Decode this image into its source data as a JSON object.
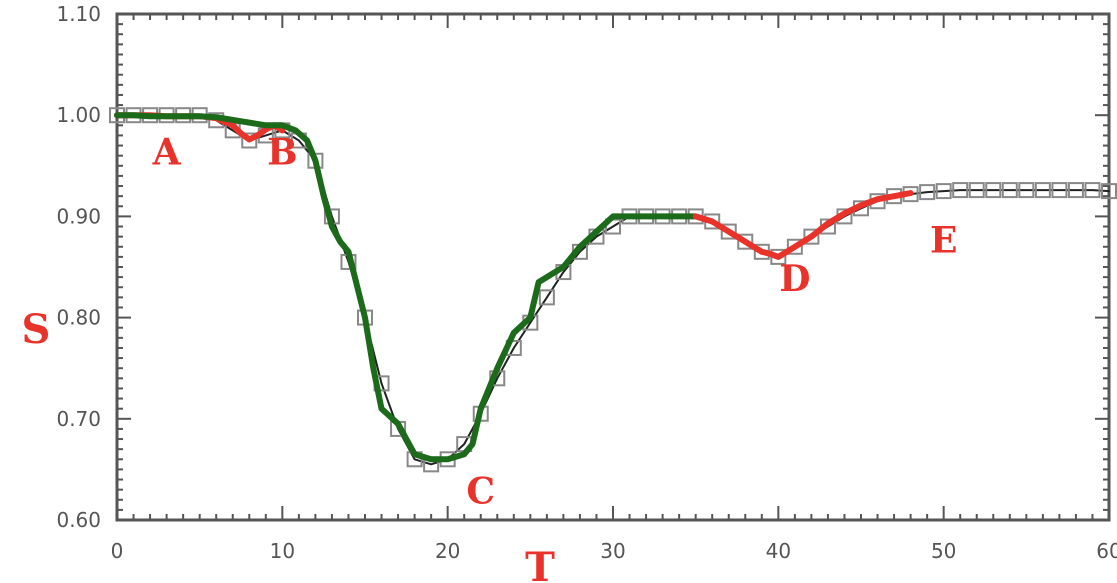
{
  "chart_data": {
    "type": "line",
    "title": "",
    "xlabel": "T",
    "ylabel": "S",
    "xlim": [
      0,
      60
    ],
    "ylim": [
      0.6,
      1.1
    ],
    "x_ticks": [
      0,
      10,
      20,
      30,
      40,
      50,
      60
    ],
    "x_tick_labels": [
      "0",
      "10",
      "20",
      "30",
      "40",
      "50",
      "60"
    ],
    "y_ticks": [
      0.6,
      0.7,
      0.8,
      0.9,
      1.0,
      1.1
    ],
    "y_tick_labels": [
      "0.60",
      "0.70",
      "0.80",
      "0.90",
      "1.00",
      "1.10"
    ],
    "grid": false,
    "series": [
      {
        "color": "#222222",
        "marker": "square",
        "x": [
          0,
          1,
          2,
          3,
          4,
          5,
          6,
          7,
          8,
          9,
          10,
          11,
          12,
          13,
          14,
          15,
          16,
          17,
          18,
          19,
          20,
          21,
          22,
          23,
          24,
          25,
          26,
          27,
          28,
          29,
          30,
          31,
          32,
          33,
          34,
          35,
          36,
          37,
          38,
          39,
          40,
          41,
          42,
          43,
          44,
          45,
          46,
          47,
          48,
          49,
          50,
          51,
          52,
          53,
          54,
          55,
          56,
          57,
          58,
          59,
          60
        ],
        "y": [
          1.0,
          1.0,
          1.0,
          1.0,
          1.0,
          1.0,
          0.995,
          0.985,
          0.975,
          0.98,
          0.985,
          0.975,
          0.955,
          0.9,
          0.855,
          0.8,
          0.735,
          0.69,
          0.66,
          0.655,
          0.66,
          0.675,
          0.705,
          0.74,
          0.77,
          0.795,
          0.82,
          0.845,
          0.865,
          0.88,
          0.89,
          0.9,
          0.9,
          0.9,
          0.9,
          0.9,
          0.895,
          0.885,
          0.875,
          0.865,
          0.86,
          0.87,
          0.88,
          0.89,
          0.9,
          0.908,
          0.915,
          0.92,
          0.922,
          0.924,
          0.925,
          0.926,
          0.926,
          0.926,
          0.926,
          0.926,
          0.926,
          0.926,
          0.926,
          0.926,
          0.925
        ]
      },
      {
        "color": "#e8322a",
        "x": [
          0,
          1,
          2,
          3,
          4,
          5,
          6,
          7,
          7.5,
          8,
          8.5,
          9,
          9.5,
          10
        ],
        "y": [
          1.0,
          1.0,
          1.0,
          0.999,
          0.999,
          0.999,
          0.997,
          0.99,
          0.982,
          0.976,
          0.98,
          0.986,
          0.99,
          0.985
        ]
      },
      {
        "color": "#1b6b1b",
        "x": [
          0,
          1,
          2,
          3,
          4,
          5,
          6,
          9,
          10,
          10.8,
          11.5,
          12,
          12.5,
          13,
          13.5,
          14,
          15,
          15.5,
          16,
          17,
          18,
          19,
          20,
          21,
          21.5,
          22,
          23,
          24,
          25,
          25.5,
          26,
          27,
          28,
          29,
          30,
          31,
          32,
          33,
          34,
          35
        ],
        "y": [
          1.0,
          1.0,
          0.999,
          0.999,
          0.999,
          0.999,
          0.998,
          0.99,
          0.99,
          0.985,
          0.975,
          0.955,
          0.92,
          0.89,
          0.875,
          0.865,
          0.8,
          0.75,
          0.71,
          0.695,
          0.665,
          0.66,
          0.66,
          0.665,
          0.675,
          0.71,
          0.75,
          0.785,
          0.8,
          0.835,
          0.84,
          0.85,
          0.87,
          0.885,
          0.9,
          0.9,
          0.9,
          0.9,
          0.9,
          0.9
        ]
      },
      {
        "color": "#e8322a",
        "x": [
          35,
          36,
          37,
          38,
          38.5,
          39,
          39.5,
          40,
          41,
          42,
          43,
          44,
          45,
          46,
          47,
          48
        ],
        "y": [
          0.9,
          0.895,
          0.885,
          0.875,
          0.87,
          0.865,
          0.863,
          0.86,
          0.87,
          0.88,
          0.893,
          0.903,
          0.911,
          0.917,
          0.92,
          0.923
        ]
      }
    ],
    "annotations": [
      {
        "text": "A",
        "x": 3,
        "y": 0.975
      },
      {
        "text": "B",
        "x": 10,
        "y": 0.975
      },
      {
        "text": "C",
        "x": 22,
        "y": 0.64
      },
      {
        "text": "D",
        "x": 41,
        "y": 0.85
      },
      {
        "text": "E",
        "x": 50,
        "y": 0.888
      }
    ]
  }
}
